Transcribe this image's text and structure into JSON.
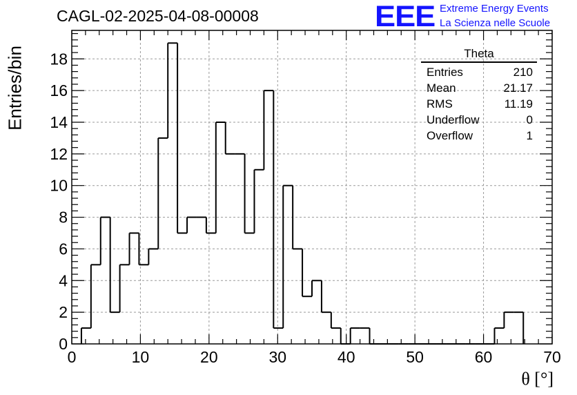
{
  "header": {
    "title": "CAGL-02-2025-04-08-00008",
    "logo_text": "EEE",
    "logo_line1": "Extreme Energy Events",
    "logo_line2": "La Scienza nelle Scuole"
  },
  "stats_box": {
    "title": "Theta",
    "rows": [
      {
        "label": "Entries",
        "value": "210"
      },
      {
        "label": "Mean",
        "value": "21.17"
      },
      {
        "label": "RMS",
        "value": "11.19"
      },
      {
        "label": "Underflow",
        "value": "0"
      },
      {
        "label": "Overflow",
        "value": "1"
      }
    ]
  },
  "chart_data": {
    "type": "bar",
    "style": "step-histogram",
    "title": "CAGL-02-2025-04-08-00008",
    "xlabel": "θ [°]",
    "ylabel": "Entries/bin",
    "xlim": [
      0,
      70
    ],
    "ylim": [
      0,
      19.8
    ],
    "grid": true,
    "bin_width": 1.4,
    "bin_edges_start": 1.4,
    "xticks": [
      0,
      10,
      20,
      30,
      40,
      50,
      60,
      70
    ],
    "yticks": [
      0,
      2,
      4,
      6,
      8,
      10,
      12,
      14,
      16,
      18
    ],
    "values": [
      1,
      5,
      8,
      2,
      5,
      7,
      5,
      6,
      13,
      19,
      7,
      8,
      8,
      7,
      14,
      12,
      12,
      7,
      11,
      16,
      1,
      10,
      6,
      3,
      4,
      2,
      1,
      0,
      1,
      1,
      0,
      0,
      0,
      0,
      0,
      0,
      0,
      0,
      0,
      0,
      0,
      0,
      0,
      1,
      2,
      2
    ],
    "line_color": "#000000",
    "grid_color": "#999999"
  }
}
